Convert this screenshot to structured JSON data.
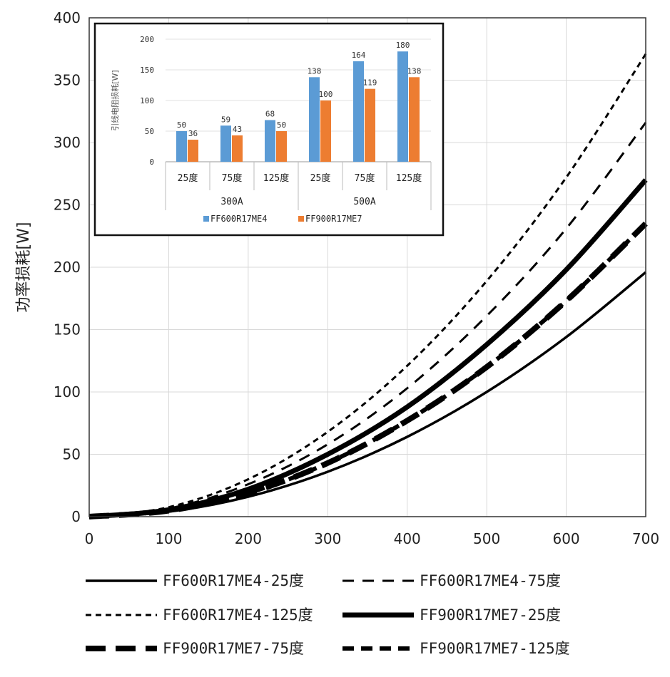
{
  "chart_data": [
    {
      "type": "line",
      "ylabel": "功率损耗[W]",
      "xlabel": "",
      "xlim": [
        0,
        700
      ],
      "ylim": [
        0,
        400
      ],
      "xticks": [
        "0",
        "100",
        "200",
        "300",
        "400",
        "500",
        "600",
        "700"
      ],
      "yticks": [
        "0",
        "50",
        "100",
        "150",
        "200",
        "250",
        "300",
        "350",
        "400"
      ],
      "grid": true,
      "legend_position": "bottom",
      "series": [
        {
          "name": "FF600R17ME4-25度",
          "style": "solid-thin",
          "x": [
            0,
            100,
            200,
            300,
            400,
            500,
            600,
            700
          ],
          "y": [
            0,
            4,
            16,
            36,
            64,
            100,
            144,
            196
          ]
        },
        {
          "name": "FF600R17ME4-75度",
          "style": "dashed-thin",
          "x": [
            0,
            100,
            200,
            300,
            400,
            500,
            600,
            700
          ],
          "y": [
            0,
            6.5,
            26,
            58,
            103,
            161,
            231,
            316
          ]
        },
        {
          "name": "FF600R17ME4-125度",
          "style": "dotted-thin",
          "x": [
            0,
            100,
            200,
            300,
            400,
            500,
            600,
            700
          ],
          "y": [
            0,
            7.6,
            30,
            68,
            121,
            189,
            272,
            371
          ]
        },
        {
          "name": "FF900R17ME7-25度",
          "style": "solid-thick",
          "x": [
            0,
            100,
            200,
            300,
            400,
            500,
            600,
            700
          ],
          "y": [
            0,
            5.5,
            22,
            50,
            88,
            138,
            198,
            270
          ]
        },
        {
          "name": "FF900R17ME7-75度",
          "style": "dashed-thick-long",
          "x": [
            0,
            100,
            200,
            300,
            400,
            500,
            600,
            700
          ],
          "y": [
            0,
            4.8,
            19,
            43,
            77,
            120,
            173,
            235
          ]
        },
        {
          "name": "FF900R17ME7-125度",
          "style": "dashed-thick",
          "x": [
            0,
            100,
            200,
            300,
            400,
            500,
            600,
            700
          ],
          "y": [
            0,
            4.8,
            19,
            43,
            77,
            120,
            173,
            235
          ]
        }
      ]
    },
    {
      "type": "bar",
      "ylabel": "引线电阻损耗[W]",
      "ylim": [
        0,
        200
      ],
      "yticks": [
        "0",
        "50",
        "100",
        "150",
        "200"
      ],
      "categories": [
        "25度",
        "75度",
        "125度",
        "25度",
        "75度",
        "125度"
      ],
      "groups": [
        {
          "label": "300A",
          "span": 3
        },
        {
          "label": "500A",
          "span": 3
        }
      ],
      "series": [
        {
          "name": "FF600R17ME4",
          "color": "#5b9bd5",
          "values": [
            50,
            59,
            68,
            138,
            164,
            180
          ]
        },
        {
          "name": "FF900R17ME7",
          "color": "#ed7d31",
          "values": [
            36,
            43,
            50,
            100,
            119,
            138
          ]
        }
      ],
      "data_labels": {
        "FF600R17ME4": [
          "50",
          "59",
          "68",
          "138",
          "164",
          "180"
        ],
        "FF900R17ME7": [
          "36",
          "43",
          "50",
          "100",
          "119",
          "138"
        ]
      },
      "legend_position": "bottom"
    }
  ]
}
